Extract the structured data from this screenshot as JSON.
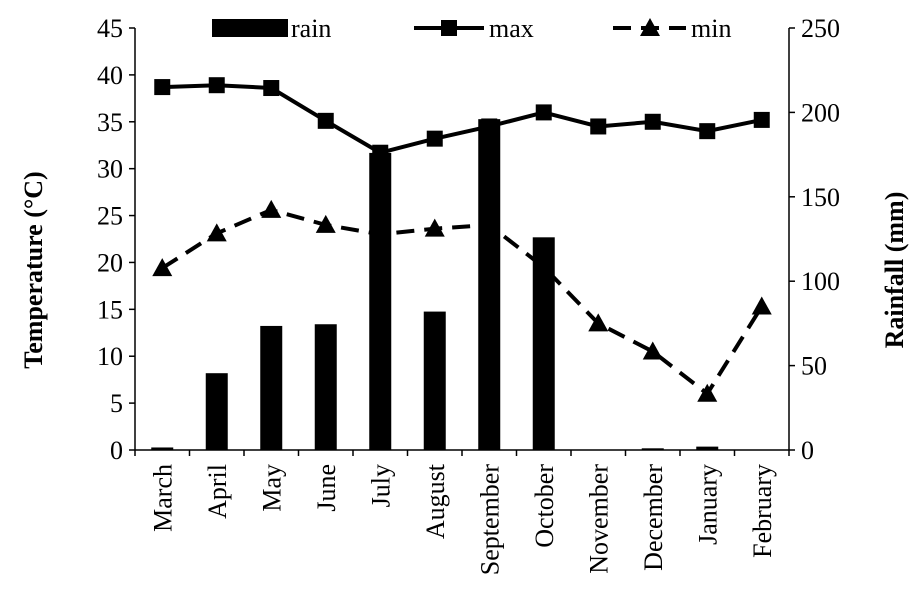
{
  "chart_data": {
    "type": "bar+line",
    "categories": [
      "March",
      "April",
      "May",
      "June",
      "July",
      "August",
      "September",
      "October",
      "November",
      "December",
      "January",
      "February"
    ],
    "series": [
      {
        "name": "rain",
        "type": "bar",
        "axis": "right",
        "values": [
          1.5,
          45.5,
          73.5,
          74.5,
          176,
          82,
          196,
          126,
          0,
          1,
          2,
          0
        ]
      },
      {
        "name": "max",
        "type": "line",
        "style": "solid",
        "marker": "square",
        "axis": "left",
        "values": [
          38.7,
          38.9,
          38.6,
          35.1,
          31.7,
          33.2,
          34.5,
          36.0,
          34.5,
          35.0,
          34.0,
          35.2
        ]
      },
      {
        "name": "min",
        "type": "line",
        "style": "dashed",
        "marker": "triangle",
        "axis": "left",
        "values": [
          19.4,
          23.1,
          25.6,
          24.0,
          23.0,
          23.6,
          24.0,
          19.5,
          13.5,
          10.5,
          6.0,
          15.3
        ]
      }
    ],
    "ylabel": "Temperature (°C)",
    "y2label": "Rainfall (mm)",
    "ylim": [
      0,
      45
    ],
    "y2lim": [
      0,
      250
    ],
    "yticks": [
      "0",
      "5",
      "10",
      "15",
      "20",
      "25",
      "30",
      "35",
      "40",
      "45"
    ],
    "y2ticks": [
      "0",
      "50",
      "100",
      "150",
      "200",
      "250"
    ],
    "legend": "top",
    "grid": false
  }
}
